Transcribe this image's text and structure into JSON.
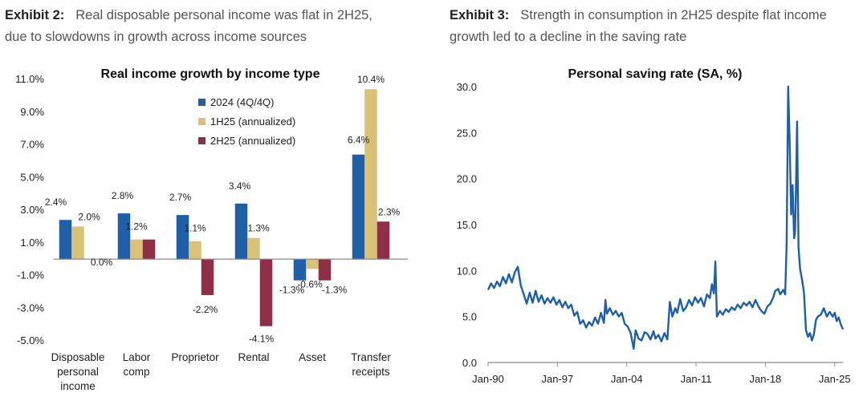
{
  "exhibits": {
    "left": {
      "label": "Exhibit 2:",
      "line1": "Real disposable personal income was flat in 2H25,",
      "line2": "due to slowdowns in growth across income sources"
    },
    "right": {
      "label": "Exhibit 3:",
      "line1": "Strength in consumption in 2H25 despite flat income",
      "line2": "growth led to a decline in the saving rate"
    }
  },
  "chart_data": [
    {
      "type": "bar",
      "title": "Real income growth by income type",
      "categories": [
        [
          "Disposable",
          "personal",
          "income"
        ],
        [
          "Labor",
          "comp"
        ],
        [
          "Proprietor"
        ],
        [
          "Rental"
        ],
        [
          "Asset"
        ],
        [
          "Transfer",
          "receipts"
        ]
      ],
      "series": [
        {
          "name": "2024 (4Q/4Q)",
          "color": "#1f5fa8",
          "values": [
            2.4,
            2.8,
            2.7,
            3.4,
            -1.3,
            6.4
          ],
          "labels": [
            "2.4%",
            "2.8%",
            "2.7%",
            "3.4%",
            "-1.3%",
            "6.4%"
          ]
        },
        {
          "name": "1H25 (annualized)",
          "color": "#d8c278",
          "values": [
            2.0,
            1.2,
            1.1,
            1.3,
            -0.6,
            10.4
          ],
          "labels": [
            "2.0%",
            "1.2%",
            "1.1%",
            "1.3%",
            "-0.6%",
            "10.4%"
          ]
        },
        {
          "name": "2H25 (annualized)",
          "color": "#8f2f45",
          "values": [
            0.0,
            1.2,
            -2.2,
            -4.1,
            -1.3,
            2.3
          ],
          "labels": [
            "0.0%",
            "",
            "-2.2%",
            "-4.1%",
            "-1.3%",
            "2.3%"
          ]
        }
      ],
      "ylim": [
        -5.0,
        11.0
      ],
      "yticks": [
        "11.0%",
        "9.0%",
        "7.0%",
        "5.0%",
        "3.0%",
        "1.0%",
        "-1.0%",
        "-3.0%",
        "-5.0%"
      ],
      "ytick_values": [
        11,
        9,
        7,
        5,
        3,
        1,
        -1,
        -3,
        -5
      ],
      "legend_position": "top-center"
    },
    {
      "type": "line",
      "title": "Personal saving rate (SA, %)",
      "ylim": [
        0,
        30
      ],
      "yticks": [
        "30.0",
        "25.0",
        "20.0",
        "15.0",
        "10.0",
        "5.0",
        "0.0"
      ],
      "ytick_values": [
        30,
        25,
        20,
        15,
        10,
        5,
        0
      ],
      "xticks": [
        "Jan-90",
        "Jan-97",
        "Jan-04",
        "Jan-11",
        "Jan-18",
        "Jan-25"
      ],
      "xtick_values": [
        1990,
        1997,
        2004,
        2011,
        2018,
        2025
      ],
      "xlim": [
        1990,
        2025.83
      ],
      "color": "#1f5fa8",
      "points": [
        [
          1990.0,
          7.9
        ],
        [
          1990.3,
          8.6
        ],
        [
          1990.6,
          8.1
        ],
        [
          1990.9,
          8.8
        ],
        [
          1991.2,
          8.3
        ],
        [
          1991.5,
          9.3
        ],
        [
          1991.8,
          8.6
        ],
        [
          1992.1,
          9.6
        ],
        [
          1992.4,
          8.7
        ],
        [
          1992.7,
          9.8
        ],
        [
          1993.0,
          10.4
        ],
        [
          1993.3,
          8.4
        ],
        [
          1993.6,
          7.4
        ],
        [
          1993.9,
          6.4
        ],
        [
          1994.2,
          7.6
        ],
        [
          1994.5,
          6.5
        ],
        [
          1994.8,
          7.8
        ],
        [
          1995.1,
          6.6
        ],
        [
          1995.4,
          7.3
        ],
        [
          1995.7,
          6.4
        ],
        [
          1996.0,
          7.0
        ],
        [
          1996.3,
          6.5
        ],
        [
          1996.6,
          7.1
        ],
        [
          1996.9,
          6.3
        ],
        [
          1997.2,
          6.8
        ],
        [
          1997.5,
          6.0
        ],
        [
          1997.8,
          6.6
        ],
        [
          1998.1,
          5.9
        ],
        [
          1998.4,
          6.3
        ],
        [
          1998.7,
          5.1
        ],
        [
          1999.0,
          5.5
        ],
        [
          1999.3,
          4.2
        ],
        [
          1999.6,
          4.6
        ],
        [
          1999.9,
          3.8
        ],
        [
          2000.2,
          4.4
        ],
        [
          2000.5,
          4.0
        ],
        [
          2000.8,
          4.9
        ],
        [
          2001.1,
          4.2
        ],
        [
          2001.4,
          5.4
        ],
        [
          2001.7,
          4.3
        ],
        [
          2001.85,
          6.8
        ],
        [
          2002.0,
          5.3
        ],
        [
          2002.3,
          5.9
        ],
        [
          2002.6,
          5.2
        ],
        [
          2002.9,
          5.6
        ],
        [
          2003.2,
          5.0
        ],
        [
          2003.5,
          5.4
        ],
        [
          2003.8,
          4.2
        ],
        [
          2004.1,
          3.9
        ],
        [
          2004.4,
          3.2
        ],
        [
          2004.7,
          1.5
        ],
        [
          2004.9,
          3.5
        ],
        [
          2005.2,
          2.6
        ],
        [
          2005.5,
          2.4
        ],
        [
          2005.8,
          3.3
        ],
        [
          2006.1,
          3.1
        ],
        [
          2006.4,
          2.5
        ],
        [
          2006.7,
          3.4
        ],
        [
          2006.9,
          2.6
        ],
        [
          2007.2,
          3.0
        ],
        [
          2007.5,
          2.3
        ],
        [
          2007.8,
          3.2
        ],
        [
          2008.1,
          2.5
        ],
        [
          2008.35,
          6.6
        ],
        [
          2008.6,
          5.0
        ],
        [
          2008.9,
          5.9
        ],
        [
          2009.1,
          5.4
        ],
        [
          2009.4,
          6.9
        ],
        [
          2009.7,
          5.6
        ],
        [
          2010.0,
          6.0
        ],
        [
          2010.3,
          6.8
        ],
        [
          2010.6,
          6.2
        ],
        [
          2010.9,
          7.1
        ],
        [
          2011.2,
          6.5
        ],
        [
          2011.5,
          7.0
        ],
        [
          2011.8,
          6.1
        ],
        [
          2012.1,
          7.4
        ],
        [
          2012.4,
          7.0
        ],
        [
          2012.6,
          8.5
        ],
        [
          2012.8,
          7.5
        ],
        [
          2012.95,
          11.0
        ],
        [
          2013.1,
          5.0
        ],
        [
          2013.4,
          5.6
        ],
        [
          2013.7,
          5.2
        ],
        [
          2014.0,
          5.8
        ],
        [
          2014.3,
          5.5
        ],
        [
          2014.6,
          6.0
        ],
        [
          2014.9,
          5.7
        ],
        [
          2015.2,
          6.3
        ],
        [
          2015.5,
          5.9
        ],
        [
          2015.8,
          6.5
        ],
        [
          2016.1,
          6.2
        ],
        [
          2016.4,
          6.6
        ],
        [
          2016.7,
          6.0
        ],
        [
          2017.0,
          6.8
        ],
        [
          2017.3,
          6.1
        ],
        [
          2017.6,
          5.6
        ],
        [
          2017.9,
          5.3
        ],
        [
          2018.2,
          6.1
        ],
        [
          2018.5,
          6.4
        ],
        [
          2018.8,
          7.1
        ],
        [
          2019.0,
          7.8
        ],
        [
          2019.3,
          8.0
        ],
        [
          2019.5,
          7.4
        ],
        [
          2019.8,
          7.9
        ],
        [
          2020.0,
          7.4
        ],
        [
          2020.15,
          12.9
        ],
        [
          2020.3,
          30.0
        ],
        [
          2020.45,
          24.2
        ],
        [
          2020.6,
          16.1
        ],
        [
          2020.75,
          19.3
        ],
        [
          2020.9,
          13.5
        ],
        [
          2021.0,
          14.2
        ],
        [
          2021.1,
          19.8
        ],
        [
          2021.2,
          26.2
        ],
        [
          2021.35,
          12.5
        ],
        [
          2021.5,
          10.2
        ],
        [
          2021.7,
          9.0
        ],
        [
          2021.9,
          7.6
        ],
        [
          2022.1,
          3.5
        ],
        [
          2022.3,
          2.8
        ],
        [
          2022.5,
          3.2
        ],
        [
          2022.7,
          2.4
        ],
        [
          2022.9,
          3.1
        ],
        [
          2023.1,
          4.6
        ],
        [
          2023.3,
          5.0
        ],
        [
          2023.6,
          5.2
        ],
        [
          2023.9,
          5.9
        ],
        [
          2024.2,
          5.0
        ],
        [
          2024.5,
          5.5
        ],
        [
          2024.8,
          5.0
        ],
        [
          2025.0,
          5.4
        ],
        [
          2025.2,
          4.5
        ],
        [
          2025.4,
          4.9
        ],
        [
          2025.6,
          4.2
        ],
        [
          2025.83,
          3.6
        ]
      ]
    }
  ]
}
